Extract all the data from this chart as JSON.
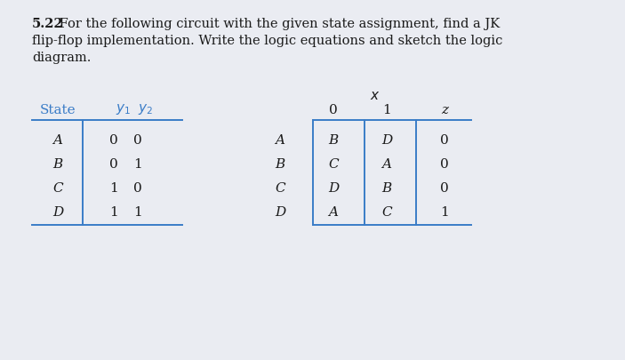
{
  "background_color": "#eaecf2",
  "text_color": "#1a1a1a",
  "line_color": "#3a7cc7",
  "title_bold": "5.22",
  "title_line1": " For the following circuit with the given state assignment, find a JK",
  "title_line2": "flip-flop implementation. Write the logic equations and sketch the logic",
  "title_line3": "diagram.",
  "left_header_1": "State",
  "left_header_2": "y",
  "left_rows": [
    [
      "A",
      "0",
      "0"
    ],
    [
      "B",
      "0",
      "1"
    ],
    [
      "C",
      "1",
      "0"
    ],
    [
      "D",
      "1",
      "1"
    ]
  ],
  "right_x_label": "x",
  "right_col_headers": [
    "0",
    "1",
    "z"
  ],
  "right_rows": [
    [
      "A",
      "B",
      "D",
      "0"
    ],
    [
      "B",
      "C",
      "A",
      "0"
    ],
    [
      "C",
      "D",
      "B",
      "0"
    ],
    [
      "D",
      "A",
      "C",
      "1"
    ]
  ]
}
